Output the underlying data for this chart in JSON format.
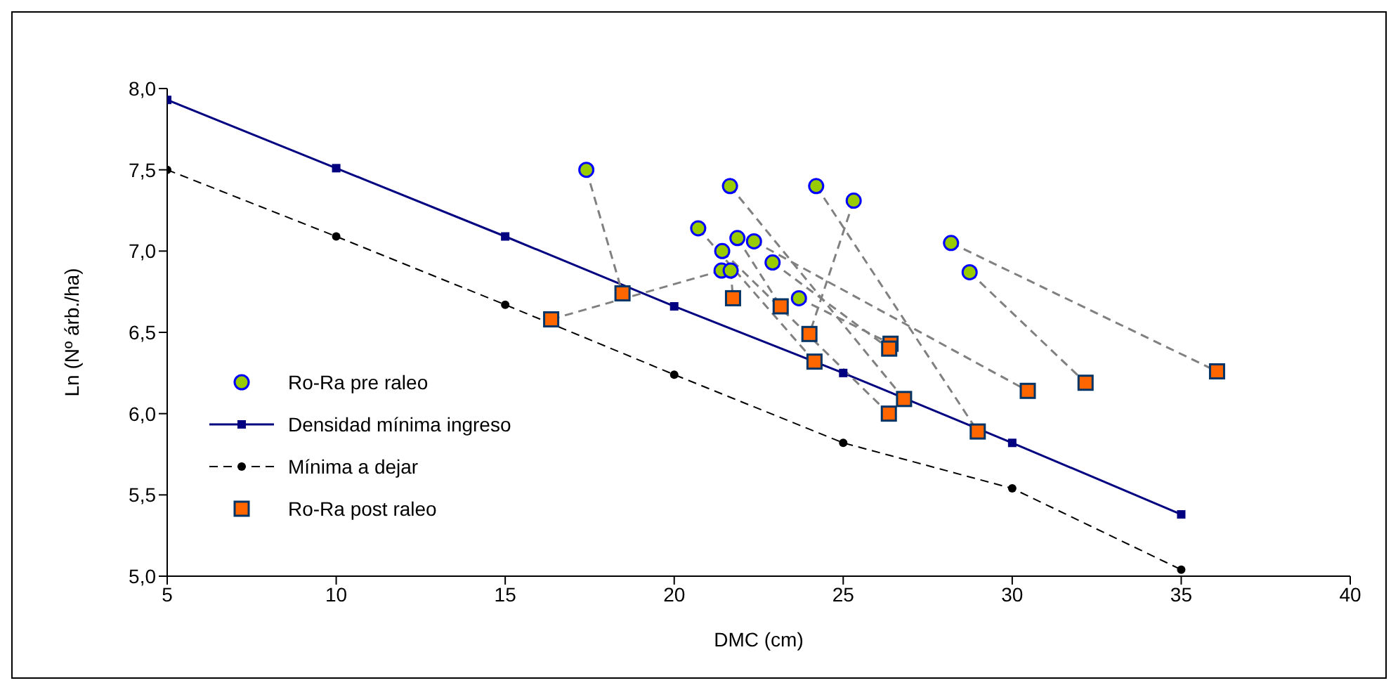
{
  "chart_data": {
    "type": "scatter",
    "xlabel": "DMC (cm)",
    "ylabel": "Ln (Nº árb./ha)",
    "xlim": [
      5,
      40
    ],
    "ylim": [
      5,
      8
    ],
    "xticks": [
      5,
      10,
      15,
      20,
      25,
      30,
      35,
      40
    ],
    "yticks": [
      {
        "value": 5,
        "label": "5,0"
      },
      {
        "value": 5.5,
        "label": "5,5"
      },
      {
        "value": 6,
        "label": "6,0"
      },
      {
        "value": 6.5,
        "label": "6,5"
      },
      {
        "value": 7,
        "label": "7,0"
      },
      {
        "value": 7.5,
        "label": "7,5"
      },
      {
        "value": 8,
        "label": "8,0"
      }
    ],
    "grid": false,
    "legend": "left",
    "series": [
      {
        "type": "line",
        "color": "#808080",
        "line_style": "dashed",
        "marker": "none",
        "x": [
          17.4,
          18.47
        ],
        "values": [
          7.5,
          6.74
        ]
      },
      {
        "type": "line",
        "color": "#808080",
        "line_style": "dashed",
        "marker": "none",
        "x": [
          21.4,
          16.36
        ],
        "values": [
          6.88,
          6.58
        ]
      },
      {
        "type": "line",
        "color": "#808080",
        "line_style": "dashed",
        "marker": "none",
        "x": [
          21.67,
          21.74
        ],
        "values": [
          6.88,
          6.71
        ]
      },
      {
        "type": "line",
        "color": "#808080",
        "line_style": "dashed",
        "marker": "none",
        "x": [
          24.2,
          28.98
        ],
        "values": [
          7.4,
          5.89
        ]
      },
      {
        "type": "line",
        "color": "#808080",
        "line_style": "dashed",
        "marker": "none",
        "x": [
          25.31,
          24.0
        ],
        "values": [
          7.31,
          6.49
        ]
      },
      {
        "type": "line",
        "color": "#808080",
        "line_style": "dashed",
        "marker": "none",
        "x": [
          28.19,
          36.06
        ],
        "values": [
          7.05,
          6.26
        ]
      },
      {
        "type": "line",
        "color": "#808080",
        "line_style": "dashed",
        "marker": "none",
        "x": [
          28.74,
          32.17
        ],
        "values": [
          6.87,
          6.19
        ]
      },
      {
        "type": "line",
        "color": "#808080",
        "line_style": "dashed",
        "marker": "none",
        "x": [
          21.65,
          26.8
        ],
        "values": [
          7.4,
          6.09
        ]
      },
      {
        "type": "line",
        "color": "#808080",
        "line_style": "dashed",
        "marker": "none",
        "x": [
          20.71,
          24.15
        ],
        "values": [
          7.14,
          6.32
        ]
      },
      {
        "type": "line",
        "color": "#808080",
        "line_style": "dashed",
        "marker": "none",
        "x": [
          21.42,
          26.35
        ],
        "values": [
          7.0,
          6.0
        ]
      },
      {
        "type": "line",
        "color": "#808080",
        "line_style": "dashed",
        "marker": "none",
        "x": [
          21.87,
          23.15
        ],
        "values": [
          7.08,
          6.66
        ]
      },
      {
        "type": "line",
        "color": "#808080",
        "line_style": "dashed",
        "marker": "none",
        "x": [
          22.36,
          30.46
        ],
        "values": [
          7.06,
          6.14
        ]
      },
      {
        "type": "line",
        "color": "#808080",
        "line_style": "dashed",
        "marker": "none",
        "x": [
          22.91,
          26.36
        ],
        "values": [
          6.93,
          6.4
        ]
      },
      {
        "type": "line",
        "color": "#808080",
        "line_style": "dashed",
        "marker": "none",
        "x": [
          23.69,
          26.4
        ],
        "values": [
          6.71,
          6.43
        ]
      },
      {
        "name": "Ro-Ra pre raleo",
        "color": "#99cc00",
        "marker": "circle",
        "x": [
          17.4,
          21.65,
          24.2,
          25.31,
          20.71,
          21.87,
          22.36,
          21.42,
          22.91,
          21.4,
          21.67,
          23.69,
          28.19,
          28.74
        ],
        "values": [
          7.5,
          7.4,
          7.4,
          7.31,
          7.14,
          7.08,
          7.06,
          7.0,
          6.93,
          6.88,
          6.88,
          6.71,
          7.05,
          6.87
        ]
      },
      {
        "name": "Densidad mínima ingreso",
        "type": "line",
        "color": "#000080",
        "line_style": "solid",
        "marker": "square",
        "x": [
          5,
          10,
          15,
          20,
          25,
          30,
          35
        ],
        "values": [
          7.93,
          7.51,
          7.09,
          6.66,
          6.25,
          5.82,
          5.38
        ]
      },
      {
        "name": "Mínima a dejar",
        "type": "line",
        "color": "#000000",
        "line_style": "dashed",
        "marker": "circle",
        "x": [
          5,
          10,
          15,
          20,
          25,
          30,
          35
        ],
        "values": [
          7.5,
          7.09,
          6.67,
          6.24,
          5.82,
          5.54,
          5.04
        ]
      },
      {
        "name": "Ro-Ra post raleo",
        "color": "#ff6600",
        "marker": "square",
        "x": [
          16.36,
          18.47,
          21.74,
          23.15,
          24.0,
          24.15,
          26.4,
          26.36,
          26.8,
          26.35,
          28.98,
          30.46,
          32.17,
          36.06
        ],
        "values": [
          6.58,
          6.74,
          6.71,
          6.66,
          6.49,
          6.32,
          6.43,
          6.4,
          6.09,
          6.0,
          5.89,
          6.14,
          6.19,
          6.26
        ]
      }
    ]
  }
}
